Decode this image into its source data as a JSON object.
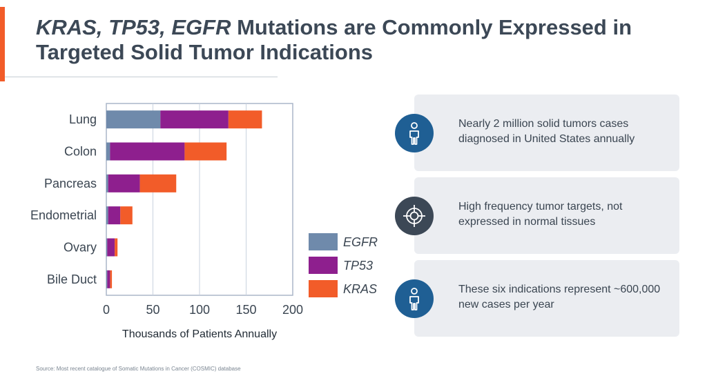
{
  "title": {
    "genes_italic": "KRAS, TP53, EGFR",
    "rest": " Mutations are Commonly Expressed in Targeted Solid Tumor Indications"
  },
  "colors": {
    "accent": "#f25c29",
    "egfr": "#6f8aab",
    "tp53": "#8e1f8e",
    "kras": "#f25c29",
    "icon_blue": "#1f5f94",
    "icon_dark": "#3c4856",
    "card_bg": "#ebedf1"
  },
  "chart_data": {
    "type": "bar",
    "orientation": "horizontal",
    "stacked": true,
    "categories": [
      "Lung",
      "Colon",
      "Pancreas",
      "Endometrial",
      "Ovary",
      "Bile Duct"
    ],
    "series": [
      {
        "name": "EGFR",
        "values": [
          58,
          4,
          2,
          2,
          1,
          1
        ]
      },
      {
        "name": "TP53",
        "values": [
          73,
          80,
          34,
          13,
          8,
          3
        ]
      },
      {
        "name": "KRAS",
        "values": [
          36,
          45,
          39,
          13,
          3,
          2
        ]
      }
    ],
    "xlabel": "Thousands of Patients Annually",
    "xlim": [
      0,
      200
    ],
    "xticks": [
      0,
      50,
      100,
      150,
      200
    ],
    "grid": true,
    "legend": "right"
  },
  "cards": [
    {
      "icon": "person-icon",
      "text": "Nearly 2 million solid tumors cases diagnosed in United States annually"
    },
    {
      "icon": "target-icon",
      "text": "High frequency tumor targets, not expressed in normal tissues"
    },
    {
      "icon": "person-icon",
      "text": "These six indications represent ~600,000 new cases per year"
    }
  ],
  "source": "Source:  Most recent catalogue of Somatic Mutations in Cancer (COSMIC) database"
}
